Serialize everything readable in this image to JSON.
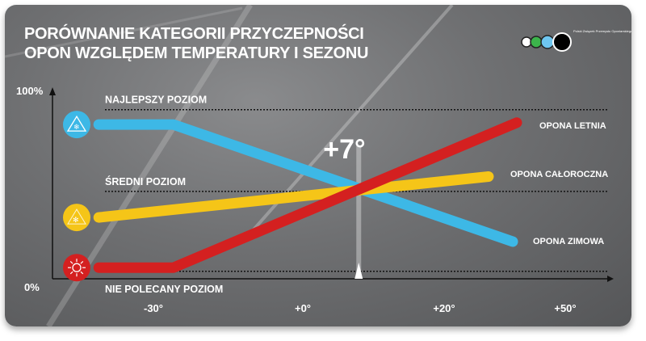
{
  "chart_data": {
    "type": "line",
    "title": "PORÓWNANIE KATEGORII PRZYCZEPNOŚCI OPON WZGLĘDEM TEMPERATURY I SEZONU",
    "title_lines": [
      "PORÓWNANIE KATEGORII PRZYCZEPNOŚCI",
      "OPON WZGLĘDEM TEMPERATURY I SEZONU"
    ],
    "y_tick_labels": [
      "100%",
      "0%"
    ],
    "x_tick_labels": [
      "-30°",
      "+0°",
      "+20°",
      "+50°"
    ],
    "x_ticks": [
      -30,
      0,
      20,
      50
    ],
    "ylim": [
      0,
      100
    ],
    "levels": [
      {
        "label": "NAJLEPSZY POZIOM",
        "value": 91
      },
      {
        "label": "ŚREDNI POZIOM",
        "value": 47
      },
      {
        "label": "NIE POLECANY POZIOM",
        "value": 4
      }
    ],
    "annotation": {
      "label": "+7°",
      "x": 7
    },
    "series": [
      {
        "name": "OPONA ZIMOWA",
        "color": "#3db8e6",
        "icon": "snowflake-mountain-icon",
        "points": [
          [
            -41,
            83
          ],
          [
            -26,
            83
          ],
          [
            37,
            20
          ]
        ]
      },
      {
        "name": "OPONA CAŁOROCZNA",
        "color": "#f5c518",
        "icon": "sun-snow-icon",
        "points": [
          [
            -41,
            33
          ],
          [
            31,
            55
          ]
        ]
      },
      {
        "name": "OPONA LETNIA",
        "color": "#d42020",
        "icon": "sun-icon",
        "points": [
          [
            -41,
            6
          ],
          [
            -26,
            6
          ],
          [
            38,
            84
          ]
        ]
      }
    ],
    "grid": false,
    "legend": "inline-right"
  },
  "logo": {
    "text": "Polski Związek Przemysłu Oponiarskiego",
    "colors": [
      "#ffffff",
      "#3cb44b",
      "#6ec6f0",
      "#000000"
    ]
  }
}
